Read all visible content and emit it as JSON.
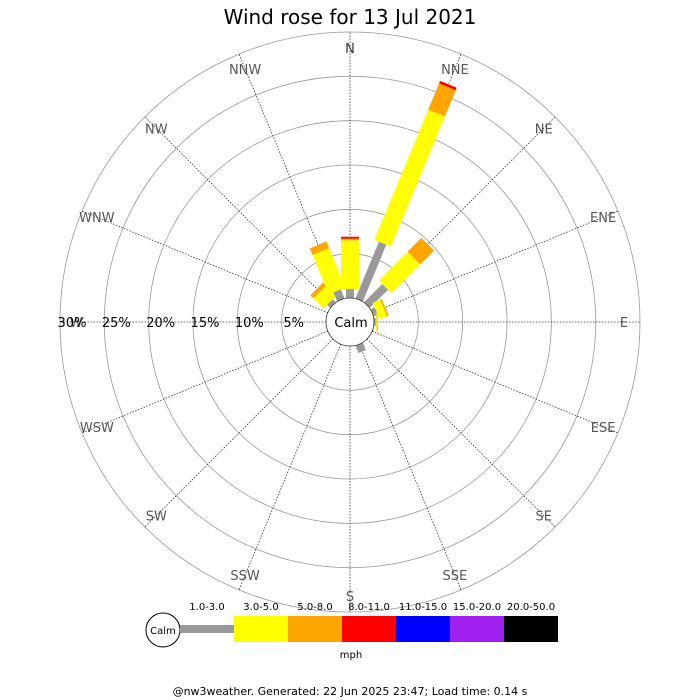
{
  "chart_data": {
    "type": "wind-rose",
    "title": "Wind rose for 13 Jul 2021",
    "directions": [
      "N",
      "NNE",
      "NE",
      "ENE",
      "E",
      "ESE",
      "SE",
      "SSE",
      "S",
      "SSW",
      "SW",
      "WSW",
      "W",
      "WNW",
      "NW",
      "NNW"
    ],
    "radial_axis": {
      "min": 0,
      "max": 30,
      "step": 5,
      "unit": "%",
      "tick_labels": [
        "5%",
        "10%",
        "15%",
        "20%",
        "25%",
        "30%"
      ],
      "label_direction": "W"
    },
    "calm_label": "Calm",
    "speed_unit": "mph",
    "speed_bins": [
      {
        "label": "1.0-3.0",
        "color": "#999999"
      },
      {
        "label": "3.0-5.0",
        "color": "#ffff00"
      },
      {
        "label": "5.0-8.0",
        "color": "#ffa500"
      },
      {
        "label": "8.0-11.0",
        "color": "#ff0000"
      },
      {
        "label": "11.0-15.0",
        "color": "#0000ff"
      },
      {
        "label": "15.0-20.0",
        "color": "#a020f0"
      },
      {
        "label": "20.0-50.0",
        "color": "#000000"
      }
    ],
    "series_cumulative_percent": [
      {
        "direction": "N",
        "values": [
          1.0,
          6.5,
          6.7,
          6.9,
          6.9,
          6.9,
          6.9
        ]
      },
      {
        "direction": "NNE",
        "values": [
          6.9,
          22.8,
          26.0,
          26.3,
          26.3,
          26.3,
          26.3
        ]
      },
      {
        "direction": "NE",
        "values": [
          2.9,
          7.5,
          9.7,
          9.7,
          9.7,
          9.7,
          9.7
        ]
      },
      {
        "direction": "ENE",
        "values": [
          0.5,
          1.4,
          1.6,
          1.6,
          1.6,
          1.6,
          1.6
        ]
      },
      {
        "direction": "E",
        "values": [
          0.2,
          0.3,
          0.4,
          0.4,
          0.4,
          0.4,
          0.4
        ]
      },
      {
        "direction": "ESE",
        "values": [
          0.0,
          0.0,
          0.0,
          0.0,
          0.0,
          0.0,
          0.0
        ]
      },
      {
        "direction": "SE",
        "values": [
          0.0,
          0.0,
          0.0,
          0.0,
          0.0,
          0.0,
          0.0
        ]
      },
      {
        "direction": "SSE",
        "values": [
          0.9,
          0.9,
          0.9,
          0.9,
          0.9,
          0.9,
          0.9
        ]
      },
      {
        "direction": "S",
        "values": [
          0.0,
          0.0,
          0.0,
          0.0,
          0.0,
          0.0,
          0.0
        ]
      },
      {
        "direction": "SSW",
        "values": [
          0.0,
          0.0,
          0.0,
          0.0,
          0.0,
          0.0,
          0.0
        ]
      },
      {
        "direction": "SW",
        "values": [
          0.0,
          0.0,
          0.0,
          0.0,
          0.0,
          0.0,
          0.0
        ]
      },
      {
        "direction": "WSW",
        "values": [
          0.0,
          0.0,
          0.0,
          0.0,
          0.0,
          0.0,
          0.0
        ]
      },
      {
        "direction": "W",
        "values": [
          0.0,
          0.0,
          0.0,
          0.0,
          0.0,
          0.0,
          0.0
        ]
      },
      {
        "direction": "WNW",
        "values": [
          0.0,
          0.0,
          0.0,
          0.0,
          0.0,
          0.0,
          0.0
        ]
      },
      {
        "direction": "NW",
        "values": [
          0.5,
          2.1,
          2.6,
          2.6,
          2.6,
          2.6,
          2.6
        ]
      },
      {
        "direction": "NNW",
        "values": [
          1.1,
          5.9,
          6.7,
          6.7,
          6.7,
          6.7,
          6.7
        ]
      }
    ]
  },
  "footer": {
    "text": "@nw3weather. Generated: 22 Jun 2025 23:47; Load time: 0.14 s"
  }
}
